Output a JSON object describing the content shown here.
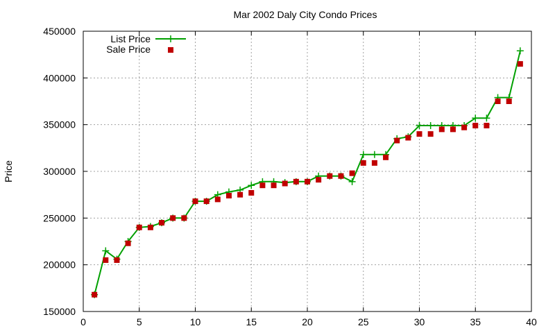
{
  "chart_data": {
    "type": "line",
    "title": "Mar 2002 Daly City Condo Prices",
    "xlabel": "",
    "ylabel": "Price",
    "xlim": [
      0,
      40
    ],
    "ylim": [
      150000,
      450000
    ],
    "xticks": [
      0,
      5,
      10,
      15,
      20,
      25,
      30,
      35,
      40
    ],
    "yticks": [
      150000,
      200000,
      250000,
      300000,
      350000,
      400000,
      450000
    ],
    "grid": true,
    "legend_position": "top-left",
    "series": [
      {
        "name": "List Price",
        "style": "lines+crosses",
        "color": "#00a000",
        "x": [
          1,
          2,
          3,
          4,
          5,
          6,
          7,
          8,
          9,
          10,
          11,
          12,
          13,
          14,
          15,
          16,
          17,
          18,
          19,
          20,
          21,
          22,
          23,
          24,
          25,
          26,
          27,
          28,
          29,
          30,
          31,
          32,
          33,
          34,
          35,
          36,
          37,
          38,
          39
        ],
        "values": [
          168000,
          215000,
          206000,
          225000,
          240000,
          241000,
          245000,
          250000,
          250000,
          268000,
          268000,
          275000,
          278000,
          280000,
          285000,
          289000,
          289000,
          288000,
          289000,
          289000,
          295000,
          295000,
          295000,
          289000,
          318000,
          318000,
          318000,
          335000,
          337000,
          349000,
          349000,
          349000,
          349000,
          349000,
          357000,
          357000,
          379000,
          379000,
          429000
        ]
      },
      {
        "name": "Sale Price",
        "style": "squares",
        "color": "#c00000",
        "x": [
          1,
          2,
          3,
          4,
          5,
          6,
          7,
          8,
          9,
          10,
          11,
          12,
          13,
          14,
          15,
          16,
          17,
          18,
          19,
          20,
          21,
          22,
          23,
          24,
          25,
          26,
          27,
          28,
          29,
          30,
          31,
          32,
          33,
          34,
          35,
          36,
          37,
          38,
          39
        ],
        "values": [
          168000,
          205000,
          205000,
          223000,
          240000,
          240000,
          245000,
          250000,
          250000,
          268000,
          268000,
          270000,
          274000,
          275000,
          277000,
          285000,
          285000,
          287000,
          289000,
          289000,
          291000,
          295000,
          295000,
          298000,
          309000,
          309000,
          315000,
          333000,
          336000,
          340000,
          340000,
          345000,
          345000,
          347000,
          349000,
          349000,
          375000,
          375000,
          415000
        ]
      }
    ]
  }
}
